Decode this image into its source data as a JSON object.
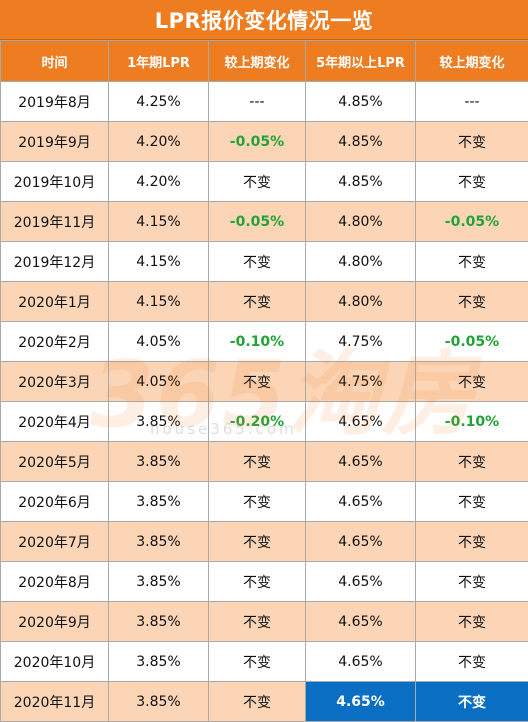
{
  "title": "LPR报价变化情况一览",
  "headers": [
    "时间",
    "1年期LPR",
    "较上期变化",
    "5年期以上LPR",
    "较上期变化"
  ],
  "rows": [
    [
      "2019年8月",
      "4.25%",
      "---",
      "4.85%",
      "---"
    ],
    [
      "2019年9月",
      "4.20%",
      "-0.05%",
      "4.85%",
      "不变"
    ],
    [
      "2019年10月",
      "4.20%",
      "不变",
      "4.85%",
      "不变"
    ],
    [
      "2019年11月",
      "4.15%",
      "-0.05%",
      "4.80%",
      "-0.05%"
    ],
    [
      "2019年12月",
      "4.15%",
      "不变",
      "4.80%",
      "不变"
    ],
    [
      "2020年1月",
      "4.15%",
      "不变",
      "4.80%",
      "不变"
    ],
    [
      "2020年2月",
      "4.05%",
      "-0.10%",
      "4.75%",
      "-0.05%"
    ],
    [
      "2020年3月",
      "4.05%",
      "不变",
      "4.75%",
      "不变"
    ],
    [
      "2020年4月",
      "3.85%",
      "-0.20%",
      "4.65%",
      "-0.10%"
    ],
    [
      "2020年5月",
      "3.85%",
      "不变",
      "4.65%",
      "不变"
    ],
    [
      "2020年6月",
      "3.85%",
      "不变",
      "4.65%",
      "不变"
    ],
    [
      "2020年7月",
      "3.85%",
      "不变",
      "4.65%",
      "不变"
    ],
    [
      "2020年8月",
      "3.85%",
      "不变",
      "4.65%",
      "不变"
    ],
    [
      "2020年9月",
      "3.85%",
      "不变",
      "4.65%",
      "不变"
    ],
    [
      "2020年10月",
      "3.85%",
      "不变",
      "4.65%",
      "不变"
    ],
    [
      "2020年11月",
      "3.85%",
      "不变",
      "4.65%",
      "不变"
    ]
  ],
  "watermark": {
    "logo_text": "365淘房",
    "url_text": "house365.com"
  },
  "colors": {
    "header_bg": "#ee7d22",
    "stripe_bg": "#fbd5b5",
    "decrease_text": "#21a337",
    "highlight_bg": "#0a6fc2"
  }
}
